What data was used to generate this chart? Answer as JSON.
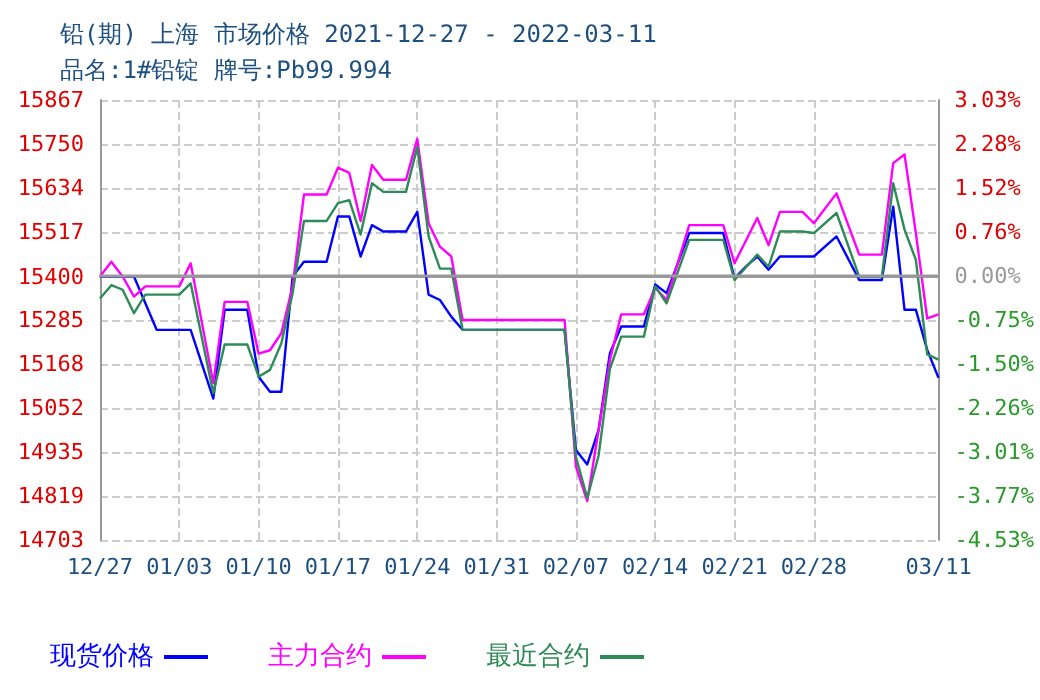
{
  "chart_data": {
    "type": "line",
    "title": "铅(期) 上海 市场价格 2021-12-27 - 2022-03-11",
    "subtitle": "品名:1#铅锭 牌号:Pb99.994",
    "series": [
      {
        "name": "现货价格",
        "color": "#0000ff",
        "x": [
          "2021-12-27",
          "2021-12-30",
          "2022-01-01",
          "2022-01-04",
          "2022-01-06",
          "2022-01-07",
          "2022-01-09",
          "2022-01-10",
          "2022-01-11",
          "2022-01-12",
          "2022-01-13",
          "2022-01-14",
          "2022-01-16",
          "2022-01-17",
          "2022-01-18",
          "2022-01-19",
          "2022-01-20",
          "2022-01-21",
          "2022-01-23",
          "2022-01-24",
          "2022-01-25",
          "2022-01-26",
          "2022-01-27",
          "2022-01-28",
          "2022-02-06",
          "2022-02-07",
          "2022-02-08",
          "2022-02-09",
          "2022-02-10",
          "2022-02-11",
          "2022-02-13",
          "2022-02-14",
          "2022-02-15",
          "2022-02-17",
          "2022-02-20",
          "2022-02-21",
          "2022-02-22",
          "2022-02-23",
          "2022-02-24",
          "2022-02-25",
          "2022-02-28",
          "2022-03-02",
          "2022-03-04",
          "2022-03-06",
          "2022-03-07",
          "2022-03-08",
          "2022-03-09",
          "2022-03-10",
          "2022-03-11"
        ],
        "values": [
          15400,
          15400,
          15259,
          15259,
          15077,
          15312,
          15312,
          15135,
          15095,
          15095,
          15400,
          15439,
          15439,
          15559,
          15559,
          15453,
          15536,
          15519,
          15519,
          15571,
          15352,
          15338,
          15294,
          15259,
          15259,
          14941,
          14903,
          14994,
          15197,
          15268,
          15268,
          15379,
          15356,
          15515,
          15515,
          15395,
          15426,
          15453,
          15418,
          15453,
          15453,
          15506,
          15391,
          15391,
          15585,
          15312,
          15312,
          15206,
          15132
        ]
      },
      {
        "name": "主力合约",
        "color": "#ff00ff",
        "x": [
          "2021-12-27",
          "2021-12-28",
          "2021-12-29",
          "2021-12-30",
          "2021-12-31",
          "2022-01-03",
          "2022-01-04",
          "2022-01-06",
          "2022-01-07",
          "2022-01-09",
          "2022-01-10",
          "2022-01-11",
          "2022-01-12",
          "2022-01-13",
          "2022-01-14",
          "2022-01-16",
          "2022-01-17",
          "2022-01-18",
          "2022-01-19",
          "2022-01-20",
          "2022-01-21",
          "2022-01-23",
          "2022-01-24",
          "2022-01-25",
          "2022-01-26",
          "2022-01-27",
          "2022-01-28",
          "2022-02-06",
          "2022-02-07",
          "2022-02-08",
          "2022-02-09",
          "2022-02-10",
          "2022-02-11",
          "2022-02-13",
          "2022-02-14",
          "2022-02-15",
          "2022-02-17",
          "2022-02-20",
          "2022-02-21",
          "2022-02-23",
          "2022-02-24",
          "2022-02-25",
          "2022-02-27",
          "2022-02-28",
          "2022-03-02",
          "2022-03-04",
          "2022-03-06",
          "2022-03-07",
          "2022-03-08",
          "2022-03-09",
          "2022-03-10",
          "2022-03-11"
        ],
        "values": [
          15400,
          15439,
          15400,
          15347,
          15374,
          15374,
          15435,
          15118,
          15333,
          15333,
          15196,
          15205,
          15250,
          15374,
          15617,
          15617,
          15688,
          15674,
          15547,
          15695,
          15656,
          15656,
          15764,
          15541,
          15479,
          15453,
          15285,
          15285,
          14897,
          14806,
          14994,
          15179,
          15300,
          15300,
          15370,
          15338,
          15536,
          15536,
          15435,
          15555,
          15483,
          15571,
          15571,
          15541,
          15620,
          15458,
          15458,
          15700,
          15723,
          15515,
          15289,
          15300
        ]
      },
      {
        "name": "最近合约",
        "color": "#2e8b57",
        "x": [
          "2021-12-27",
          "2021-12-28",
          "2021-12-29",
          "2021-12-30",
          "2021-12-31",
          "2022-01-03",
          "2022-01-04",
          "2022-01-06",
          "2022-01-07",
          "2022-01-09",
          "2022-01-10",
          "2022-01-11",
          "2022-01-12",
          "2022-01-13",
          "2022-01-14",
          "2022-01-16",
          "2022-01-17",
          "2022-01-18",
          "2022-01-19",
          "2022-01-20",
          "2022-01-21",
          "2022-01-23",
          "2022-01-24",
          "2022-01-25",
          "2022-01-26",
          "2022-01-27",
          "2022-01-28",
          "2022-02-06",
          "2022-02-07",
          "2022-02-08",
          "2022-02-09",
          "2022-02-10",
          "2022-02-11",
          "2022-02-13",
          "2022-02-14",
          "2022-02-15",
          "2022-02-17",
          "2022-02-20",
          "2022-02-21",
          "2022-02-23",
          "2022-02-24",
          "2022-02-25",
          "2022-02-27",
          "2022-02-28",
          "2022-03-02",
          "2022-03-04",
          "2022-03-06",
          "2022-03-07",
          "2022-03-08",
          "2022-03-09",
          "2022-03-10",
          "2022-03-11"
        ],
        "values": [
          15342,
          15377,
          15365,
          15303,
          15352,
          15352,
          15382,
          15091,
          15220,
          15220,
          15135,
          15153,
          15223,
          15356,
          15547,
          15547,
          15594,
          15602,
          15511,
          15647,
          15624,
          15624,
          15743,
          15506,
          15421,
          15421,
          15259,
          15259,
          14923,
          14814,
          14926,
          15156,
          15241,
          15241,
          15374,
          15329,
          15497,
          15497,
          15391,
          15458,
          15426,
          15519,
          15519,
          15515,
          15568,
          15400,
          15400,
          15647,
          15524,
          15444,
          15194,
          15180
        ]
      }
    ],
    "xlim": [
      "2021-12-27",
      "2022-03-11"
    ],
    "xticks": [
      {
        "value": "2021-12-27",
        "label": "12/27"
      },
      {
        "value": "2022-01-03",
        "label": "01/03"
      },
      {
        "value": "2022-01-10",
        "label": "01/10"
      },
      {
        "value": "2022-01-17",
        "label": "01/17"
      },
      {
        "value": "2022-01-24",
        "label": "01/24"
      },
      {
        "value": "2022-01-31",
        "label": "01/31"
      },
      {
        "value": "2022-02-07",
        "label": "02/07"
      },
      {
        "value": "2022-02-14",
        "label": "02/14"
      },
      {
        "value": "2022-02-21",
        "label": "02/21"
      },
      {
        "value": "2022-02-28",
        "label": "02/28"
      },
      {
        "value": "2022-03-11",
        "label": "03/11"
      }
    ],
    "ylim": [
      14703,
      15867
    ],
    "yticks": [
      14703,
      14819,
      14935,
      15052,
      15168,
      15285,
      15400,
      15517,
      15634,
      15750,
      15867
    ],
    "y2lim": [
      -4.53,
      3.03
    ],
    "y2ticks": [
      {
        "value": -4.53,
        "label": "-4.53%"
      },
      {
        "value": -3.77,
        "label": "-3.77%"
      },
      {
        "value": -3.01,
        "label": "-3.01%"
      },
      {
        "value": -2.26,
        "label": "-2.26%"
      },
      {
        "value": -1.5,
        "label": "-1.50%"
      },
      {
        "value": -0.75,
        "label": "-0.75%"
      },
      {
        "value": 0,
        "label": "0.00%"
      },
      {
        "value": 0.76,
        "label": "0.76%"
      },
      {
        "value": 1.52,
        "label": "1.52%"
      },
      {
        "value": 2.28,
        "label": "2.28%"
      },
      {
        "value": 3.03,
        "label": "3.03%"
      }
    ],
    "ref_lines": [
      {
        "axis": "y2",
        "value": 0,
        "color": "#999999"
      }
    ],
    "grid": true,
    "legend": "bottom left",
    "marker": "none",
    "line_style": "solid"
  }
}
